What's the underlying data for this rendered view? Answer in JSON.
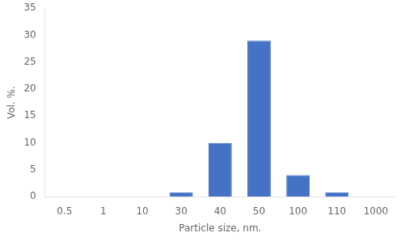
{
  "chart_data": {
    "type": "bar",
    "categories": [
      "0.5",
      "1",
      "10",
      "30",
      "40",
      "50",
      "100",
      "110",
      "1000"
    ],
    "values": [
      null,
      null,
      null,
      0.8,
      10.0,
      29.0,
      4.0,
      0.8,
      null
    ],
    "color": "#4472C4",
    "xlabel": "Particle size, nm.",
    "ylabel": "Vol. %.",
    "ylim": [
      0,
      35
    ],
    "yticks": [
      0,
      5,
      10,
      15,
      20,
      25,
      30,
      35
    ],
    "grid": false
  }
}
